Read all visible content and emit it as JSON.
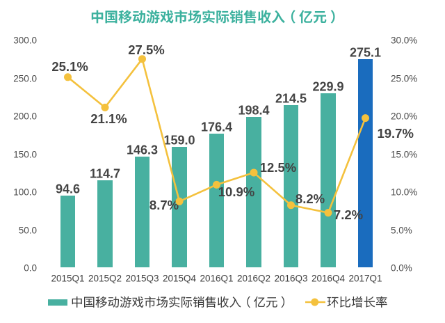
{
  "title": "中国移动游戏市场实际销售收入（亿元）",
  "chart_data": {
    "type": "bar+line combo, dual axis",
    "categories": [
      "2015Q1",
      "2015Q2",
      "2015Q3",
      "2015Q4",
      "2016Q1",
      "2016Q2",
      "2016Q3",
      "2016Q4",
      "2017Q1"
    ],
    "series": [
      {
        "name": "中国移动游戏市场实际销售收入（亿元）",
        "type": "bar",
        "axis": "left",
        "values": [
          94.6,
          114.7,
          146.3,
          159.0,
          176.4,
          198.4,
          214.5,
          229.9,
          275.1
        ],
        "labels": [
          "94.6",
          "114.7",
          "146.3",
          "159.0",
          "176.4",
          "198.4",
          "214.5",
          "229.9",
          "275.1"
        ]
      },
      {
        "name": "环比增长率",
        "type": "line",
        "axis": "right",
        "values": [
          25.1,
          21.1,
          27.5,
          8.7,
          10.9,
          12.5,
          8.2,
          7.2,
          19.7
        ],
        "labels": [
          "25.1%",
          "21.1%",
          "27.5%",
          "8.7%",
          "10.9%",
          "12.5%",
          "8.2%",
          "7.2%",
          "19.7%"
        ]
      }
    ],
    "y_left": {
      "min": 0,
      "max": 300,
      "step": 50,
      "ticks": [
        "0.0",
        "50.0",
        "100.0",
        "150.0",
        "200.0",
        "250.0",
        "300.0"
      ]
    },
    "y_right": {
      "min": 0,
      "max": 30,
      "step": 5,
      "ticks": [
        "0.0%",
        "5.0%",
        "10.0%",
        "15.0%",
        "20.0%",
        "25.0%",
        "30.0%"
      ]
    },
    "highlight_index": 8,
    "grid": "off",
    "legend_position": "bottom",
    "title": "中国移动游戏市场实际销售收入（亿元）"
  },
  "legend": {
    "bar_label": "中国移动游戏市场实际销售收入（亿元）",
    "line_label": "环比增长率"
  },
  "colors": {
    "background": "#ffffff",
    "bar": "#48b0a0",
    "bar_highlight": "#1a6cbe",
    "line": "#f4c13d",
    "title": "#3cb19e",
    "value_label": "#454545",
    "pct_label": "#424242",
    "axis_tick": "#4a4a4a",
    "x_tick": "#404040",
    "legend_text": "#383838"
  }
}
